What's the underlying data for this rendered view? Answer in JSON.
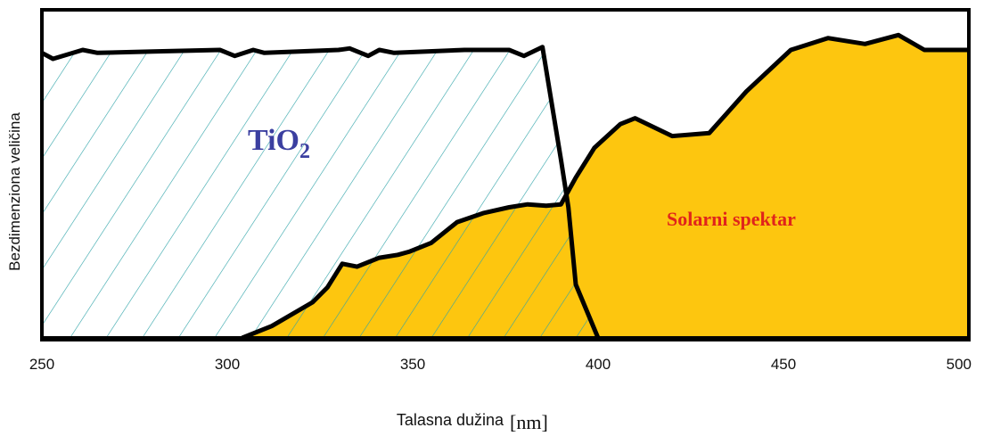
{
  "chart_data": {
    "type": "area",
    "xlabel": "Talasna dužina",
    "xunit": "[nm]",
    "ylabel": "Bezdimenziona veličina",
    "xlim": [
      250,
      500
    ],
    "ylim": [
      0,
      1
    ],
    "x_ticks": [
      "250",
      "300",
      "350",
      "400",
      "450",
      "500"
    ],
    "grid": false,
    "colors": {
      "solar": "#FDC60F",
      "hatch": "#2EA3A8",
      "tio2_label": "#3B3FA0",
      "solar_label": "#E0241B",
      "frame": "#000000"
    },
    "series": [
      {
        "name": "TiO2",
        "label_main": "TiO",
        "label_sub": "2",
        "style": "hatched",
        "points": [
          [
            250,
            0.96
          ],
          [
            253,
            0.94
          ],
          [
            261,
            0.97
          ],
          [
            265,
            0.96
          ],
          [
            280,
            0.965
          ],
          [
            298,
            0.97
          ],
          [
            302,
            0.95
          ],
          [
            307,
            0.97
          ],
          [
            310,
            0.96
          ],
          [
            330,
            0.97
          ],
          [
            333,
            0.975
          ],
          [
            338,
            0.95
          ],
          [
            341,
            0.97
          ],
          [
            345,
            0.96
          ],
          [
            364,
            0.97
          ],
          [
            376,
            0.97
          ],
          [
            380,
            0.95
          ],
          [
            385,
            0.98
          ],
          [
            390,
            0.6
          ],
          [
            392,
            0.44
          ],
          [
            394,
            0.18
          ],
          [
            400,
            0.0
          ]
        ]
      },
      {
        "name": "Solarni spektar",
        "style": "filled",
        "points": [
          [
            304,
            0.0
          ],
          [
            312,
            0.04
          ],
          [
            323,
            0.12
          ],
          [
            327,
            0.17
          ],
          [
            331,
            0.25
          ],
          [
            335,
            0.24
          ],
          [
            341,
            0.27
          ],
          [
            346,
            0.28
          ],
          [
            349,
            0.29
          ],
          [
            355,
            0.32
          ],
          [
            362,
            0.39
          ],
          [
            369,
            0.42
          ],
          [
            376,
            0.44
          ],
          [
            381,
            0.45
          ],
          [
            386,
            0.445
          ],
          [
            390,
            0.45
          ],
          [
            394,
            0.54
          ],
          [
            399,
            0.64
          ],
          [
            406,
            0.72
          ],
          [
            410,
            0.74
          ],
          [
            420,
            0.68
          ],
          [
            430,
            0.69
          ],
          [
            440,
            0.83
          ],
          [
            452,
            0.97
          ],
          [
            462,
            1.01
          ],
          [
            472,
            0.99
          ],
          [
            481,
            1.02
          ],
          [
            488,
            0.97
          ],
          [
            500,
            0.97
          ],
          [
            500,
            0.0
          ]
        ]
      }
    ]
  }
}
